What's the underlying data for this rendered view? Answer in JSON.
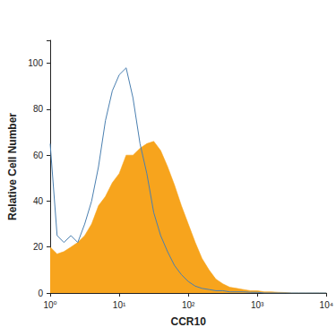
{
  "chart_data": {
    "type": "line",
    "x_label": "CCR10",
    "y_label": "Relative Cell Number",
    "log": "x",
    "grid": false,
    "x": [
      1,
      1.26,
      1.58,
      2,
      2.51,
      3.16,
      3.98,
      5.01,
      6.31,
      7.94,
      10,
      12.6,
      15.8,
      20,
      25.1,
      31.6,
      39.8,
      50.1,
      63.1,
      79.4,
      100,
      126,
      158,
      200,
      251,
      316,
      398,
      501,
      631,
      794,
      1000,
      1259,
      1585,
      1995,
      2512,
      3162,
      3981,
      5012,
      6310,
      7943,
      10000
    ],
    "series": [
      {
        "type": "area",
        "color": "#f7a41d",
        "values": [
          20,
          17,
          18,
          20,
          22,
          25,
          30,
          38,
          42,
          48,
          52,
          60,
          60,
          63,
          65,
          66,
          62,
          55,
          47,
          38,
          30,
          22,
          15,
          10,
          6,
          4,
          2.5,
          2,
          1.5,
          1,
          1,
          0.5,
          0.5,
          0.3,
          0.2,
          0,
          0,
          0,
          0,
          0,
          0
        ]
      },
      {
        "type": "line",
        "color": "#4a7fb0",
        "values": [
          65,
          25,
          22,
          25,
          22,
          30,
          40,
          55,
          75,
          88,
          95,
          98,
          85,
          65,
          52,
          35,
          25,
          18,
          12,
          8,
          5,
          3,
          2,
          1.5,
          1,
          1,
          0.5,
          0.5,
          0.5,
          0.3,
          0.3,
          0,
          0,
          0,
          0,
          0,
          0,
          0,
          0,
          0,
          0
        ]
      }
    ],
    "xlim": [
      1,
      10000
    ],
    "xticks": [
      {
        "value": 1,
        "label": "10⁰"
      },
      {
        "value": 10,
        "label": "10¹"
      },
      {
        "value": 100,
        "label": "10²"
      },
      {
        "value": 1000,
        "label": "10³"
      },
      {
        "value": 10000,
        "label": "10⁴"
      }
    ],
    "ylim": [
      0,
      110
    ],
    "yticks": [
      0,
      20,
      40,
      60,
      80,
      100
    ]
  }
}
